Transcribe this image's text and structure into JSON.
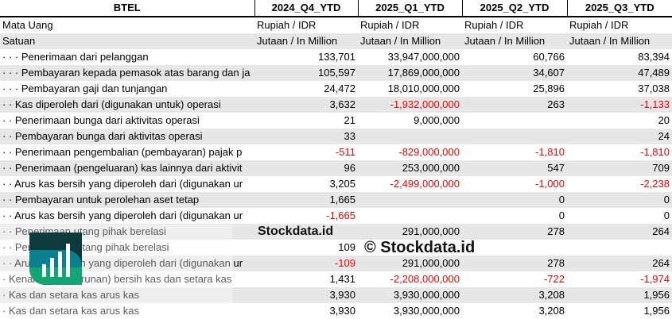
{
  "header": [
    "BTEL",
    "2024_Q4_YTD",
    "2025_Q1_YTD",
    "2025_Q2_YTD",
    "2025_Q3_YTD"
  ],
  "meta_rows": [
    {
      "label": "Mata Uang",
      "values": [
        "Rupiah / IDR",
        "Rupiah / IDR",
        "Rupiah / IDR",
        "Rupiah / IDR"
      ]
    },
    {
      "label": "Satuan",
      "values": [
        "Jutaan / In Million",
        "Jutaan / In Million",
        "Jutaan / In Million",
        "Jutaan / In Million"
      ]
    }
  ],
  "rows": [
    {
      "label": "· · · Penerimaan dari pelanggan",
      "values": [
        "133,701",
        "33,947,000,000",
        "60,766",
        "83,394"
      ]
    },
    {
      "label": "· · · Pembayaran kepada pemasok atas barang dan ja",
      "values": [
        "105,597",
        "17,869,000,000",
        "34,607",
        "47,489"
      ]
    },
    {
      "label": "· · · Pembayaran gaji dan tunjangan",
      "values": [
        "24,472",
        "18,010,000,000",
        "25,896",
        "37,038"
      ]
    },
    {
      "label": "· · Kas diperoleh dari (digunakan untuk) operasi",
      "values": [
        "3,632",
        "-1,932,000,000",
        "263",
        "-1,133"
      ]
    },
    {
      "label": "· · Penerimaan bunga dari aktivitas operasi",
      "values": [
        "21",
        "9,000,000",
        "",
        "20"
      ]
    },
    {
      "label": "· · Pembayaran bunga dari aktivitas operasi",
      "values": [
        "33",
        "",
        "",
        "24"
      ]
    },
    {
      "label": "· · Penerimaan pengembalian (pembayaran) pajak p",
      "values": [
        "-511",
        "-829,000,000",
        "-1,810",
        "-1,810"
      ]
    },
    {
      "label": "· · Penerimaan (pengeluaran) kas lainnya dari aktivit",
      "values": [
        "96",
        "253,000,000",
        "547",
        "709"
      ]
    },
    {
      "label": "· · Arus kas bersih yang diperoleh dari (digunakan ur",
      "values": [
        "3,205",
        "-2,499,000,000",
        "-1,000",
        "-2,238"
      ]
    },
    {
      "label": "· · Pembayaran untuk perolehan aset tetap",
      "values": [
        "1,665",
        "",
        "0",
        "0"
      ]
    },
    {
      "label": "· · Arus kas bersih yang diperoleh dari (digunakan ur",
      "values": [
        "-1,665",
        "",
        "0",
        "0"
      ]
    },
    {
      "label": "· · Penerimaan utang pihak berelasi",
      "values": [
        "",
        "291,000,000",
        "278",
        "264"
      ]
    },
    {
      "label": "· · Pembayaran utang pihak berelasi",
      "values": [
        "109",
        "",
        "",
        ""
      ]
    },
    {
      "label": "· · Arus kas bersih yang diperoleh dari (digunakan ur",
      "values": [
        "-109",
        "291,000,000",
        "278",
        "264"
      ]
    },
    {
      "label": "· Kenaikan (penurunan) bersih kas dan setara kas",
      "values": [
        "1,431",
        "-2,208,000,000",
        "-722",
        "-1,974"
      ]
    },
    {
      "label": "· Kas dan setara kas arus kas",
      "values": [
        "3,930",
        "3,930,000,000",
        "3,208",
        "1,956"
      ]
    },
    {
      "label": "· Kas dan setara kas arus kas",
      "values": [
        "3,930",
        "3,930,000,000",
        "3,208",
        "1,956"
      ]
    }
  ],
  "watermark": {
    "copyright": "© Stockdata.id",
    "logo_text": "Stockdata.id"
  },
  "colors": {
    "negative": "#ff0000",
    "stripe": "#e6e6e6",
    "logo_dark": "#0d3b3b",
    "logo_teal": "#0a7f8f",
    "logo_green": "#12a672"
  }
}
